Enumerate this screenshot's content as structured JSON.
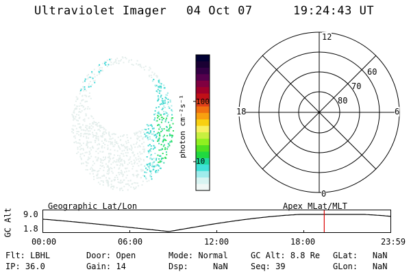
{
  "header": {
    "instrument": "Ultraviolet Imager",
    "date": "04 Oct 07",
    "time": "19:24:43 UT"
  },
  "colorbar": {
    "unit_label": "photon cm⁻²s⁻¹",
    "tick_labels": [
      "100",
      "10"
    ],
    "colors": [
      "#000033",
      "#1a0033",
      "#330044",
      "#55004d",
      "#800040",
      "#a0002a",
      "#c01018",
      "#e0401a",
      "#f07010",
      "#f8a010",
      "#f8d010",
      "#f8f060",
      "#c8f040",
      "#90f020",
      "#50e020",
      "#20d840",
      "#20d8a0",
      "#40e0d8",
      "#a0ecec",
      "#d8f4f2",
      "#f0f8f6"
    ]
  },
  "polar": {
    "mlt_labels": {
      "top": "12",
      "left": "18",
      "right": "6",
      "bottom": "0"
    },
    "lat_labels": [
      "60",
      "70",
      "80"
    ]
  },
  "altitude_plot": {
    "ylabel": "GC Alt",
    "y_ticks": [
      "9.0",
      "1.8"
    ],
    "left_caption": "Geographic Lat/Lon",
    "right_caption": "Apex  MLat/MLT",
    "x_ticks": [
      "00:00",
      "06:00",
      "12:00",
      "18:00",
      "23:59"
    ],
    "current_marker_hours": 19.41,
    "colors": {
      "curve": "#000000",
      "marker": "#dd0000"
    }
  },
  "info": {
    "rows": [
      [
        {
          "k": "Flt:",
          "v": "LBHL"
        },
        {
          "k": "Door:",
          "v": "Open"
        },
        {
          "k": "Mode:",
          "v": "Normal"
        },
        {
          "k": "GC Alt:",
          "v": "8.8 Re"
        },
        {
          "k": "GLat:",
          "v": "NaN"
        }
      ],
      [
        {
          "k": "IP:",
          "v": "36.0"
        },
        {
          "k": "Gain:",
          "v": "14"
        },
        {
          "k": "Dsp:",
          "v": "NaN"
        },
        {
          "k": "Seq:",
          "v": "39"
        },
        {
          "k": "GLon:",
          "v": "NaN"
        }
      ]
    ]
  }
}
